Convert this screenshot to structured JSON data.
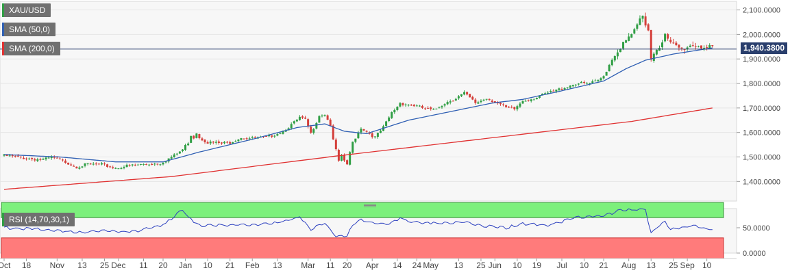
{
  "legend": {
    "symbol": "XAU/USD",
    "sma50": "SMA (50,0)",
    "sma200": "SMA (200,0)",
    "rsi": "RSI (14,70,30,1)"
  },
  "price_tag": "1,940.3800",
  "colors": {
    "up": "#2f9e44",
    "down": "#d43f3a",
    "sma50": "#2f5fb3",
    "sma200": "#e03131",
    "rsi_line": "#2b3fbf",
    "overbought": "#7cf07c",
    "oversold": "#ff7b7b",
    "price_line": "#1f3266",
    "tag": "#2a3f6d"
  },
  "chart_data": {
    "type": "candlestick",
    "y_ticks": [
      "2,100.0000",
      "2,000.0000",
      "1,900.0000",
      "1,800.0000",
      "1,700.0000",
      "1,600.0000",
      "1,500.0000",
      "1,400.0000"
    ],
    "y_tick_values": [
      2100,
      2000,
      1900,
      1800,
      1700,
      1600,
      1500,
      1400
    ],
    "ylim": [
      1320,
      2135
    ],
    "x_labels": [
      "Oct",
      "18",
      "Nov",
      "13",
      "25",
      "Dec",
      "11",
      "20",
      "Jan",
      "10",
      "21",
      "Feb",
      "13",
      "Mar",
      "11",
      "20",
      "Apr",
      "14",
      "24",
      "May",
      "13",
      "25",
      "Jun",
      "10",
      "19",
      "Jul",
      "10",
      "21",
      "Aug",
      "13",
      "25",
      "Sep",
      "10"
    ],
    "x_label_index": [
      0,
      8,
      19,
      28,
      36,
      41,
      50,
      57,
      65,
      73,
      81,
      89,
      98,
      109,
      117,
      123,
      132,
      141,
      148,
      153,
      163,
      171,
      176,
      184,
      191,
      200,
      208,
      215,
      224,
      232,
      240,
      245,
      252
    ],
    "anchors": [
      [
        0,
        1505
      ],
      [
        8,
        1495
      ],
      [
        14,
        1488
      ],
      [
        17,
        1498
      ],
      [
        22,
        1480
      ],
      [
        26,
        1460
      ],
      [
        30,
        1470
      ],
      [
        35,
        1468
      ],
      [
        40,
        1455
      ],
      [
        45,
        1465
      ],
      [
        50,
        1470
      ],
      [
        56,
        1475
      ],
      [
        61,
        1505
      ],
      [
        64,
        1530
      ],
      [
        66,
        1560
      ],
      [
        67,
        1590
      ],
      [
        68,
        1580
      ],
      [
        69,
        1600
      ],
      [
        70,
        1580
      ],
      [
        73,
        1560
      ],
      [
        78,
        1555
      ],
      [
        81,
        1560
      ],
      [
        85,
        1580
      ],
      [
        89,
        1575
      ],
      [
        94,
        1580
      ],
      [
        100,
        1605
      ],
      [
        104,
        1640
      ],
      [
        106,
        1660
      ],
      [
        108,
        1650
      ],
      [
        110,
        1595
      ],
      [
        113,
        1670
      ],
      [
        115,
        1675
      ],
      [
        117,
        1630
      ],
      [
        118,
        1565
      ],
      [
        119,
        1530
      ],
      [
        120,
        1480
      ],
      [
        121,
        1500
      ],
      [
        123,
        1470
      ],
      [
        125,
        1560
      ],
      [
        128,
        1620
      ],
      [
        133,
        1580
      ],
      [
        136,
        1620
      ],
      [
        139,
        1680
      ],
      [
        142,
        1720
      ],
      [
        147,
        1710
      ],
      [
        150,
        1700
      ],
      [
        154,
        1690
      ],
      [
        158,
        1720
      ],
      [
        162,
        1740
      ],
      [
        165,
        1760
      ],
      [
        169,
        1720
      ],
      [
        173,
        1740
      ],
      [
        177,
        1720
      ],
      [
        180,
        1700
      ],
      [
        183,
        1695
      ],
      [
        186,
        1730
      ],
      [
        190,
        1740
      ],
      [
        195,
        1760
      ],
      [
        200,
        1780
      ],
      [
        205,
        1800
      ],
      [
        210,
        1800
      ],
      [
        213,
        1810
      ],
      [
        215,
        1830
      ],
      [
        218,
        1900
      ],
      [
        221,
        1950
      ],
      [
        223,
        1970
      ],
      [
        226,
        2015
      ],
      [
        227,
        2030
      ],
      [
        228,
        2060
      ],
      [
        229,
        2065
      ],
      [
        231,
        2020
      ],
      [
        232,
        1905
      ],
      [
        233,
        1930
      ],
      [
        235,
        1955
      ],
      [
        237,
        1995
      ],
      [
        239,
        1960
      ],
      [
        243,
        1940
      ],
      [
        247,
        1960
      ],
      [
        251,
        1950
      ],
      [
        254,
        1940
      ]
    ],
    "sma50_anchors": [
      [
        0,
        1510
      ],
      [
        20,
        1500
      ],
      [
        40,
        1480
      ],
      [
        57,
        1480
      ],
      [
        70,
        1520
      ],
      [
        90,
        1575
      ],
      [
        105,
        1620
      ],
      [
        115,
        1635
      ],
      [
        122,
        1605
      ],
      [
        130,
        1595
      ],
      [
        145,
        1650
      ],
      [
        160,
        1685
      ],
      [
        175,
        1720
      ],
      [
        186,
        1735
      ],
      [
        200,
        1770
      ],
      [
        215,
        1810
      ],
      [
        223,
        1860
      ],
      [
        230,
        1895
      ],
      [
        240,
        1920
      ],
      [
        250,
        1938
      ],
      [
        254,
        1945
      ]
    ],
    "sma200_anchors": [
      [
        0,
        1368
      ],
      [
        60,
        1420
      ],
      [
        120,
        1505
      ],
      [
        180,
        1585
      ],
      [
        225,
        1645
      ],
      [
        254,
        1700
      ]
    ],
    "rsi_anchors": [
      [
        0,
        50
      ],
      [
        10,
        48
      ],
      [
        20,
        44
      ],
      [
        28,
        40
      ],
      [
        35,
        44
      ],
      [
        45,
        42
      ],
      [
        50,
        46
      ],
      [
        58,
        58
      ],
      [
        62,
        78
      ],
      [
        64,
        86
      ],
      [
        66,
        70
      ],
      [
        70,
        55
      ],
      [
        80,
        55
      ],
      [
        90,
        56
      ],
      [
        100,
        62
      ],
      [
        104,
        68
      ],
      [
        106,
        72
      ],
      [
        108,
        60
      ],
      [
        110,
        45
      ],
      [
        113,
        55
      ],
      [
        115,
        60
      ],
      [
        117,
        45
      ],
      [
        119,
        35
      ],
      [
        121,
        32
      ],
      [
        123,
        35
      ],
      [
        125,
        55
      ],
      [
        128,
        65
      ],
      [
        135,
        57
      ],
      [
        139,
        60
      ],
      [
        142,
        70
      ],
      [
        145,
        62
      ],
      [
        155,
        58
      ],
      [
        165,
        62
      ],
      [
        170,
        55
      ],
      [
        180,
        50
      ],
      [
        186,
        58
      ],
      [
        195,
        55
      ],
      [
        205,
        70
      ],
      [
        210,
        72
      ],
      [
        215,
        73
      ],
      [
        220,
        83
      ],
      [
        225,
        85
      ],
      [
        230,
        86
      ],
      [
        231,
        60
      ],
      [
        232,
        40
      ],
      [
        235,
        55
      ],
      [
        237,
        62
      ],
      [
        239,
        48
      ],
      [
        244,
        50
      ],
      [
        247,
        55
      ],
      [
        251,
        48
      ],
      [
        254,
        47
      ]
    ],
    "rsi_ticks": [
      "50.0000",
      "0.0000"
    ],
    "last_price": 1940.38
  }
}
